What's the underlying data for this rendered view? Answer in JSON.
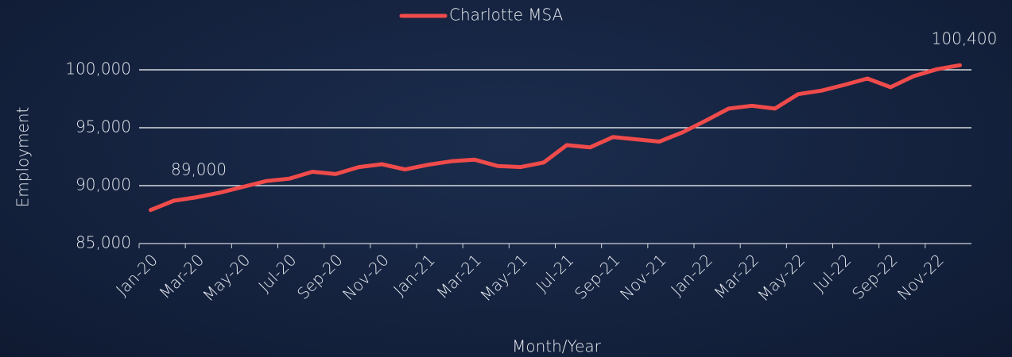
{
  "chart_data": {
    "type": "line",
    "x_label": "Month/Year",
    "y_label": "Employment",
    "categories": [
      "Jan-20",
      null,
      "Mar-20",
      null,
      "May-20",
      null,
      "Jul-20",
      null,
      "Sep-20",
      null,
      "Nov-20",
      null,
      "Jan-21",
      null,
      "Mar-21",
      null,
      "May-21",
      null,
      "Jul-21",
      null,
      "Sep-21",
      null,
      "Nov-21",
      null,
      "Jan-22",
      null,
      "Mar-22",
      null,
      "May-22",
      null,
      "Jul-22",
      null,
      "Sep-22",
      null,
      "Nov-22",
      null
    ],
    "series": [
      {
        "name": "Charlotte MSA",
        "color": "#ef4b4b",
        "values": [
          87900,
          88700,
          89000,
          89400,
          89900,
          90400,
          90600,
          91200,
          91000,
          91600,
          91850,
          91400,
          91800,
          92100,
          92250,
          91700,
          91600,
          92000,
          93500,
          93300,
          94200,
          94000,
          93800,
          94600,
          95600,
          96650,
          96900,
          96650,
          97900,
          98200,
          98700,
          99250,
          98500,
          99450,
          100050,
          100400
        ]
      }
    ],
    "annotations": [
      "89,000",
      "100,400"
    ],
    "ylim": [
      85000,
      100000
    ],
    "yticks": [
      {
        "value": 85000,
        "label": "85,000"
      },
      {
        "value": 90000,
        "label": "90,000"
      },
      {
        "value": 95000,
        "label": "95,000"
      },
      {
        "value": 100000,
        "label": "100,000"
      }
    ],
    "grid": true,
    "legend": "top"
  }
}
